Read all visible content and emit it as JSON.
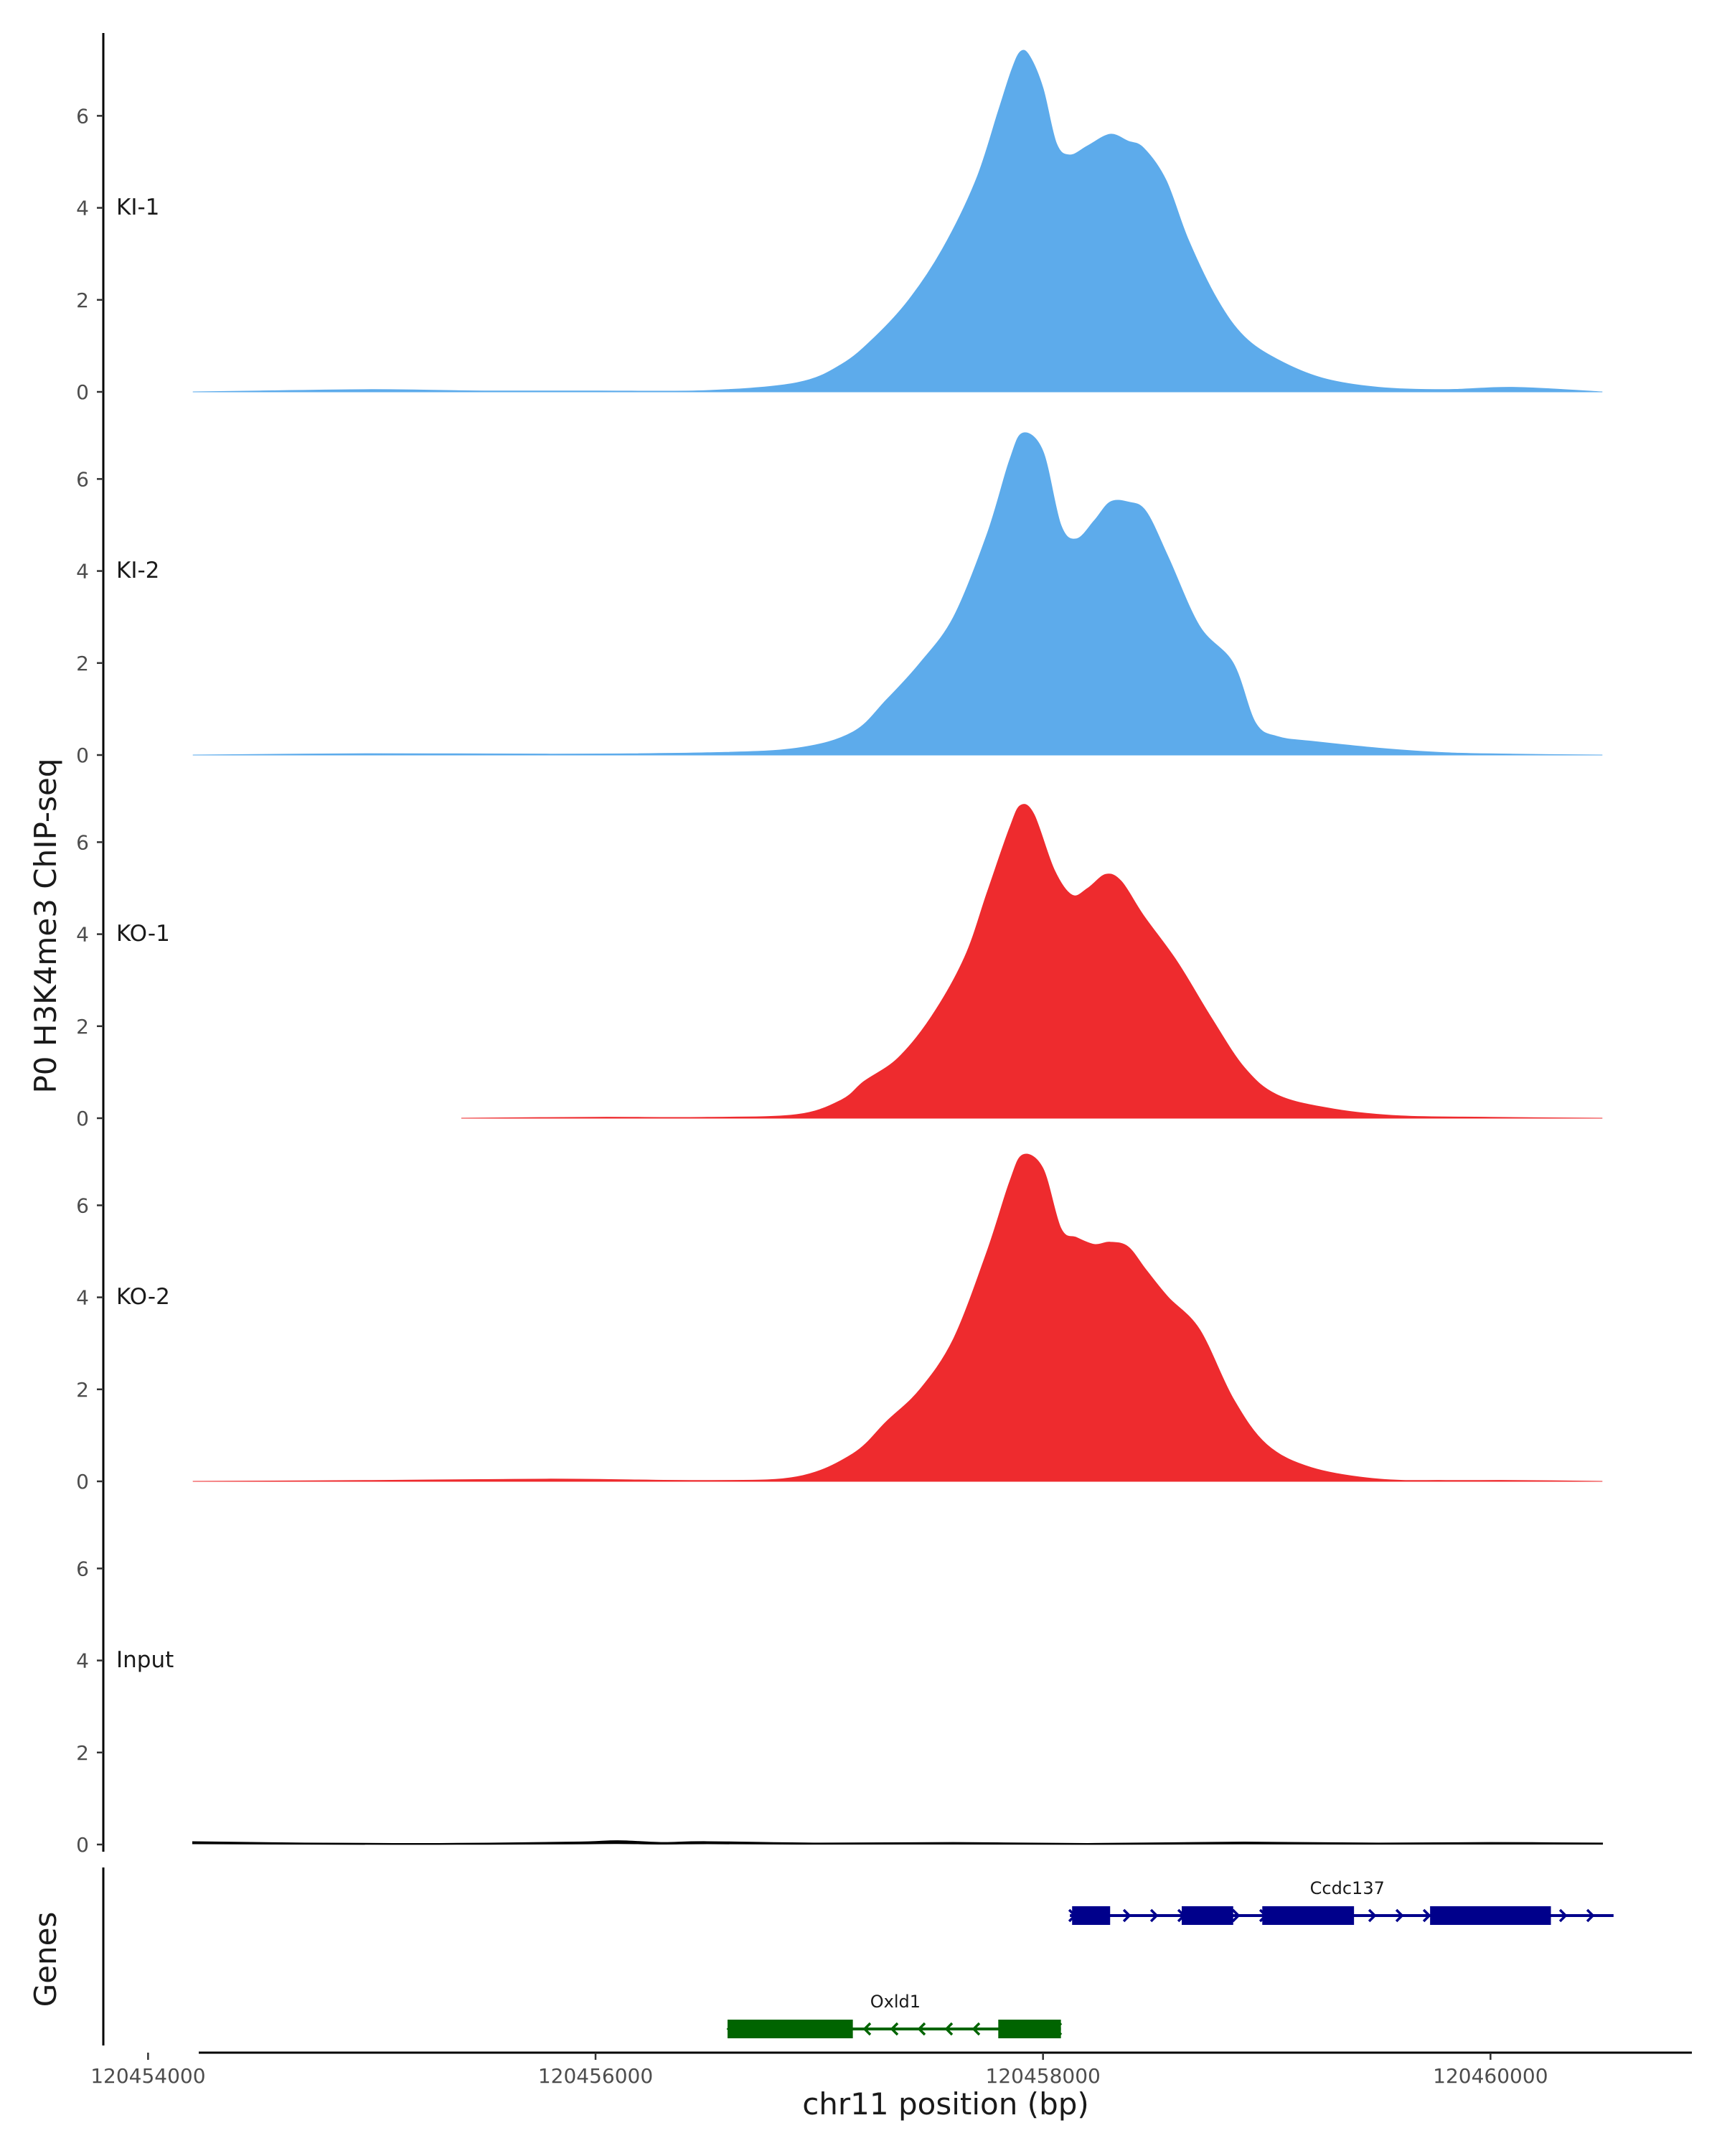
{
  "chart_data": {
    "type": "area",
    "ylabel": "P0 H3K4me3 ChIP-seq",
    "xlabel": "chr11 position (bp)",
    "xlim": [
      120453800,
      120460900
    ],
    "ylim": [
      0,
      7.8
    ],
    "y_ticks": [
      0,
      2,
      4,
      6
    ],
    "x_ticks": [
      120454000,
      120456000,
      120458000,
      120460000
    ],
    "genes_label": "Genes",
    "tracks": [
      {
        "name": "KI-1",
        "color": "#5DABEB",
        "range": [
          120454200,
          120460500
        ],
        "x": [
          120454200,
          120454500,
          120455000,
          120455500,
          120456000,
          120456500,
          120456900,
          120457100,
          120457250,
          120457400,
          120457550,
          120457700,
          120457800,
          120457860,
          120457900,
          120457940,
          120458000,
          120458060,
          120458120,
          120458200,
          120458300,
          120458380,
          120458450,
          120458550,
          120458650,
          120458780,
          120458900,
          120459050,
          120459250,
          120459500,
          120459800,
          120460100,
          120460500
        ],
        "y": [
          0.0,
          0.02,
          0.05,
          0.02,
          0.02,
          0.03,
          0.2,
          0.6,
          1.2,
          2.0,
          3.1,
          4.6,
          6.1,
          7.0,
          7.4,
          7.3,
          6.6,
          5.4,
          5.15,
          5.35,
          5.6,
          5.45,
          5.3,
          4.6,
          3.3,
          2.0,
          1.2,
          0.7,
          0.3,
          0.1,
          0.05,
          0.1,
          0.0
        ]
      },
      {
        "name": "KI-2",
        "color": "#5DABEB",
        "range": [
          120454200,
          120460500
        ],
        "x": [
          120454200,
          120455000,
          120455800,
          120456500,
          120456900,
          120457150,
          120457300,
          120457450,
          120457600,
          120457750,
          120457850,
          120457910,
          120458000,
          120458080,
          120458150,
          120458230,
          120458300,
          120458380,
          120458460,
          120458560,
          120458700,
          120458850,
          120458950,
          120459050,
          120459200,
          120459500,
          120459800,
          120460100,
          120460500
        ],
        "y": [
          0.0,
          0.03,
          0.02,
          0.05,
          0.15,
          0.5,
          1.2,
          2.0,
          3.0,
          4.8,
          6.4,
          7.0,
          6.6,
          5.0,
          4.7,
          5.1,
          5.5,
          5.5,
          5.3,
          4.3,
          2.8,
          2.0,
          0.7,
          0.4,
          0.3,
          0.15,
          0.05,
          0.02,
          0.0
        ]
      },
      {
        "name": "KO-1",
        "color": "#EE2B2E",
        "range": [
          120455400,
          120460500
        ],
        "x": [
          120455400,
          120456000,
          120456500,
          120456900,
          120457100,
          120457200,
          120457350,
          120457500,
          120457650,
          120457750,
          120457850,
          120457900,
          120457960,
          120458050,
          120458130,
          120458200,
          120458280,
          120458350,
          120458450,
          120458600,
          120458750,
          120458900,
          120459050,
          120459300,
          120459600,
          120460000,
          120460500
        ],
        "y": [
          0.0,
          0.02,
          0.02,
          0.08,
          0.4,
          0.8,
          1.3,
          2.2,
          3.5,
          4.9,
          6.3,
          6.8,
          6.6,
          5.4,
          4.85,
          5.0,
          5.3,
          5.15,
          4.4,
          3.4,
          2.2,
          1.1,
          0.5,
          0.2,
          0.05,
          0.02,
          0.0
        ]
      },
      {
        "name": "KO-2",
        "color": "#EE2B2E",
        "range": [
          120454200,
          120460500
        ],
        "x": [
          120454200,
          120455000,
          120455800,
          120456500,
          120456900,
          120457150,
          120457300,
          120457450,
          120457600,
          120457750,
          120457850,
          120457910,
          120458000,
          120458080,
          120458150,
          120458230,
          120458300,
          120458380,
          120458460,
          120458560,
          120458700,
          120458850,
          120459000,
          120459200,
          120459500,
          120459800,
          120460100,
          120460500
        ],
        "y": [
          0.0,
          0.02,
          0.05,
          0.02,
          0.1,
          0.6,
          1.3,
          2.0,
          3.1,
          5.0,
          6.5,
          7.1,
          6.8,
          5.5,
          5.3,
          5.15,
          5.2,
          5.1,
          4.6,
          4.0,
          3.3,
          1.8,
          0.8,
          0.3,
          0.05,
          0.02,
          0.02,
          0.0
        ]
      },
      {
        "name": "Input",
        "color": "#000000",
        "range": [
          120454200,
          120460500
        ],
        "x": [
          120454200,
          120454700,
          120455300,
          120455900,
          120456100,
          120456300,
          120456500,
          120457000,
          120457600,
          120458200,
          120458900,
          120459500,
          120460000,
          120460500
        ],
        "y": [
          0.06,
          0.03,
          0.02,
          0.05,
          0.08,
          0.04,
          0.06,
          0.03,
          0.04,
          0.02,
          0.05,
          0.03,
          0.04,
          0.03
        ]
      }
    ],
    "genes": [
      {
        "name": "Ccdc137",
        "strand": "+",
        "color": "#00008B",
        "start": 120458120,
        "end": 120460550,
        "exons": [
          [
            120458130,
            120458300
          ],
          [
            120458620,
            120458850
          ],
          [
            120458980,
            120459390
          ],
          [
            120459730,
            120460270
          ]
        ]
      },
      {
        "name": "Oxld1",
        "strand": "-",
        "color": "#006400",
        "start": 120456590,
        "end": 120458080,
        "exons": [
          [
            120456590,
            120457150
          ],
          [
            120457800,
            120458080
          ]
        ]
      }
    ]
  }
}
